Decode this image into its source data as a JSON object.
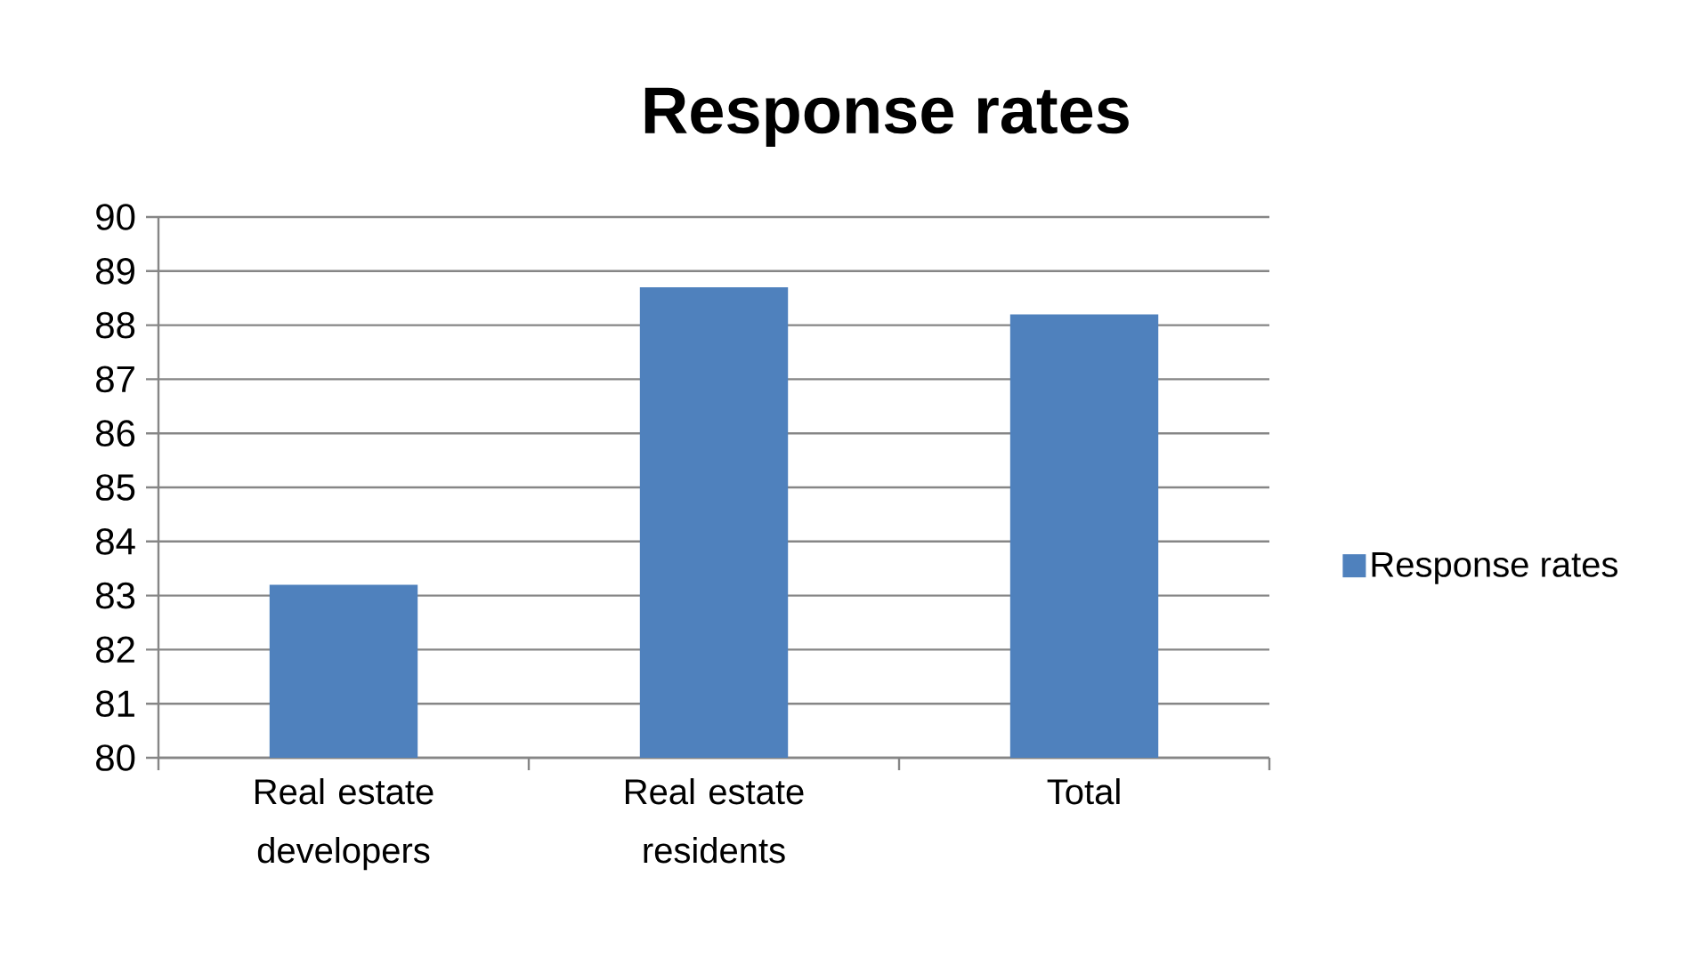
{
  "chart_data": {
    "type": "bar",
    "title": "Response rates",
    "categories": [
      "Real estate developers",
      "Real estate residents",
      "Total"
    ],
    "series": [
      {
        "name": "Response rates",
        "color": "#4f81bd",
        "values": [
          83.2,
          88.7,
          88.2
        ]
      }
    ],
    "ylim": [
      80,
      90
    ],
    "yticks": [
      80,
      81,
      82,
      83,
      84,
      85,
      86,
      87,
      88,
      89,
      90
    ],
    "grid": "y",
    "legend": "right"
  }
}
